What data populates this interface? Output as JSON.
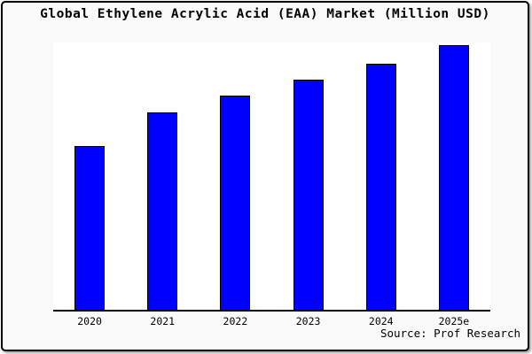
{
  "figure": {
    "background_color": "#fafafa",
    "plot_background_color": "#ffffff",
    "border_color": "#000000",
    "title": "Global Ethylene Acrylic Acid (EAA) Market (Million USD)",
    "source_note": "Source: Prof Research"
  },
  "chart_data": {
    "type": "bar",
    "title": "Global Ethylene Acrylic Acid (EAA) Market (Million USD)",
    "categories": [
      "2020",
      "2021",
      "2022",
      "2023",
      "2024",
      "2025e"
    ],
    "values": [
      62,
      74.5,
      81,
      87,
      93,
      100
    ],
    "values_note": "y-axis has no tick labels; values are relative bar heights normalized to 2025e = 100",
    "xlabel": "",
    "ylabel": "",
    "ylim": [
      0,
      101
    ],
    "grid": false,
    "legend": null,
    "y_axis_labeled": false,
    "bar_color": "#0000ff",
    "bar_edge_color": "#000000",
    "annotation": "Source: Prof Research"
  }
}
